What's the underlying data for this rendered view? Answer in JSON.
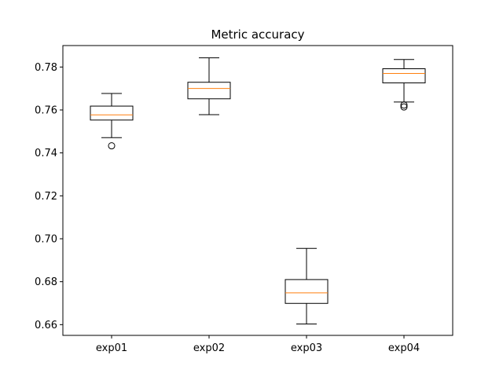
{
  "chart_data": {
    "type": "box",
    "title": "Metric accuracy",
    "xlabel": "",
    "ylabel": "",
    "categories": [
      "exp01",
      "exp02",
      "exp03",
      "exp04"
    ],
    "ylim": [
      0.655,
      0.79
    ],
    "yticks": [
      0.66,
      0.68,
      0.7,
      0.72,
      0.74,
      0.76,
      0.78
    ],
    "ytick_labels": [
      "0.66",
      "0.68",
      "0.70",
      "0.72",
      "0.74",
      "0.76",
      "0.78"
    ],
    "grid": false,
    "boxes": [
      {
        "label": "exp01",
        "whisker_low": 0.7471,
        "q1": 0.7553,
        "median": 0.7577,
        "q3": 0.7618,
        "whisker_high": 0.7677,
        "outliers": [
          0.7433
        ]
      },
      {
        "label": "exp02",
        "whisker_low": 0.7578,
        "q1": 0.7652,
        "median": 0.77,
        "q3": 0.7729,
        "whisker_high": 0.7843,
        "outliers": []
      },
      {
        "label": "exp03",
        "whisker_low": 0.6603,
        "q1": 0.6699,
        "median": 0.6748,
        "q3": 0.681,
        "whisker_high": 0.6955,
        "outliers": []
      },
      {
        "label": "exp04",
        "whisker_low": 0.7637,
        "q1": 0.7726,
        "median": 0.777,
        "q3": 0.7792,
        "whisker_high": 0.7835,
        "outliers": [
          0.7623,
          0.7614
        ]
      }
    ],
    "colors": {
      "box": "#000000",
      "median": "#ff7f0e",
      "outlier": "#000000"
    }
  }
}
